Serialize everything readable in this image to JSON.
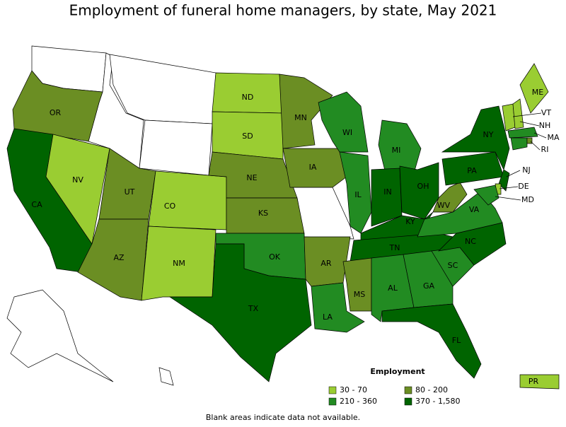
{
  "title": "Employment of funeral home managers, by state, May 2021",
  "legend": {
    "title": "Employment",
    "items": [
      {
        "label": "30 - 70",
        "color": "#9acd32"
      },
      {
        "label": "80 - 200",
        "color": "#6b8e23"
      },
      {
        "label": "210 - 360",
        "color": "#228b22"
      },
      {
        "label": "370 - 1,580",
        "color": "#006400"
      }
    ]
  },
  "states": [
    {
      "label": "OR",
      "bin": 1
    },
    {
      "label": "CA",
      "bin": 3
    },
    {
      "label": "NV",
      "bin": 0
    },
    {
      "label": "UT",
      "bin": 1
    },
    {
      "label": "AZ",
      "bin": 1
    },
    {
      "label": "CO",
      "bin": 0
    },
    {
      "label": "NM",
      "bin": 0
    },
    {
      "label": "ND",
      "bin": 0
    },
    {
      "label": "SD",
      "bin": 0
    },
    {
      "label": "NE",
      "bin": 1
    },
    {
      "label": "KS",
      "bin": 1
    },
    {
      "label": "OK",
      "bin": 2
    },
    {
      "label": "TX",
      "bin": 3
    },
    {
      "label": "MN",
      "bin": 1
    },
    {
      "label": "IA",
      "bin": 1
    },
    {
      "label": "AR",
      "bin": 1
    },
    {
      "label": "LA",
      "bin": 2
    },
    {
      "label": "WI",
      "bin": 2
    },
    {
      "label": "IL",
      "bin": 2
    },
    {
      "label": "MI",
      "bin": 2
    },
    {
      "label": "IN",
      "bin": 3
    },
    {
      "label": "OH",
      "bin": 3
    },
    {
      "label": "KY",
      "bin": 3
    },
    {
      "label": "TN",
      "bin": 3
    },
    {
      "label": "MS",
      "bin": 1
    },
    {
      "label": "AL",
      "bin": 2
    },
    {
      "label": "GA",
      "bin": 2
    },
    {
      "label": "FL",
      "bin": 3
    },
    {
      "label": "SC",
      "bin": 2
    },
    {
      "label": "NC",
      "bin": 3
    },
    {
      "label": "VA",
      "bin": 2
    },
    {
      "label": "WV",
      "bin": 1
    },
    {
      "label": "PA",
      "bin": 3
    },
    {
      "label": "NY",
      "bin": 3
    },
    {
      "label": "ME",
      "bin": 0
    },
    {
      "label": "VT",
      "bin": 0
    },
    {
      "label": "NH",
      "bin": 0
    },
    {
      "label": "MA",
      "bin": 2
    },
    {
      "label": "RI",
      "bin": 1
    },
    {
      "label": "NJ",
      "bin": 3
    },
    {
      "label": "DE",
      "bin": 0
    },
    {
      "label": "MD",
      "bin": 2
    },
    {
      "label": "PR",
      "bin": 0
    }
  ],
  "note": "Blank areas indicate data not available."
}
